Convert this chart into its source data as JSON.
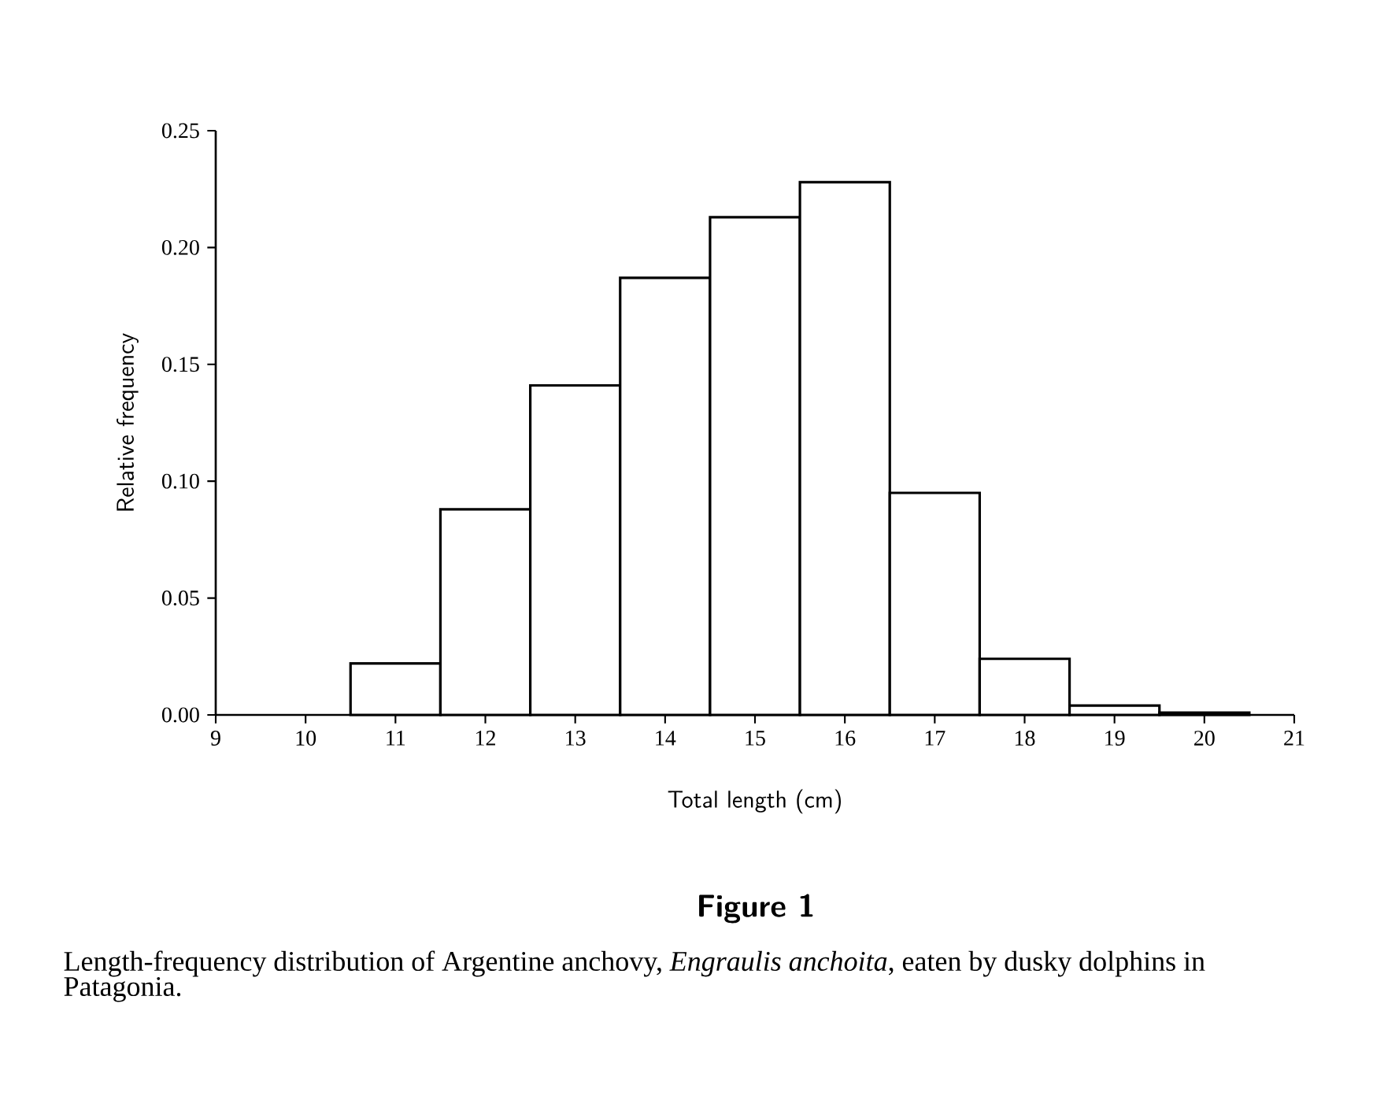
{
  "chart_data": {
    "type": "histogram",
    "xlabel": "Total length (cm)",
    "ylabel": "Relative frequency",
    "bins": [
      10.5,
      11.5,
      12.5,
      13.5,
      14.5,
      15.5,
      16.5,
      17.5,
      18.5,
      19.5,
      20.5
    ],
    "values": [
      0.022,
      0.088,
      0.141,
      0.187,
      0.213,
      0.228,
      0.095,
      0.024,
      0.004,
      0.001
    ],
    "color": "#ffffff",
    "xlim": [
      9,
      21
    ],
    "xticks": [
      9,
      10,
      11,
      12,
      13,
      14,
      15,
      16,
      17,
      18,
      19,
      20,
      21
    ],
    "ylim": [
      0,
      0.25
    ],
    "yticks": [
      {
        "value": 0,
        "label": "0.00"
      },
      {
        "value": 0.05,
        "label": "0.05"
      },
      {
        "value": 0.1,
        "label": "0.10"
      },
      {
        "value": 0.15,
        "label": "0.15"
      },
      {
        "value": 0.2,
        "label": "0.20"
      },
      {
        "value": 0.25,
        "label": "0.25"
      }
    ],
    "annotations": [
      "**Figure 1**",
      "Length-frequency distribution of Argentine anchovy, *Engraulis anchoita*, eaten by dusky dolphins in Patagonia."
    ]
  }
}
